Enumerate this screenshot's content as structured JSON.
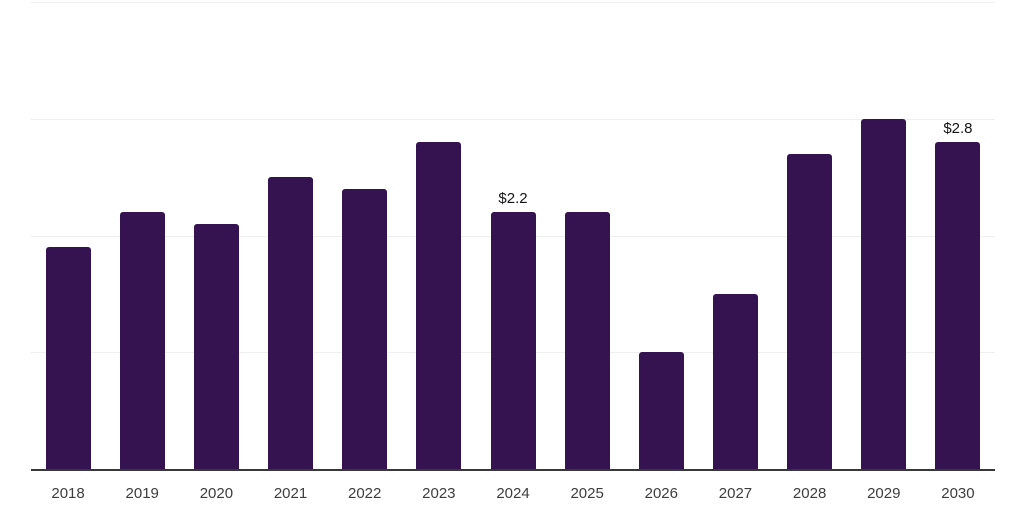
{
  "chart_data": {
    "type": "bar",
    "title": "",
    "xlabel": "",
    "ylabel": "",
    "categories": [
      "2018",
      "2019",
      "2020",
      "2021",
      "2022",
      "2023",
      "2024",
      "2025",
      "2026",
      "2027",
      "2028",
      "2029",
      "2030"
    ],
    "values": [
      1.9,
      2.2,
      2.1,
      2.5,
      2.4,
      2.8,
      2.2,
      2.2,
      1.0,
      1.5,
      2.7,
      3.0,
      2.8
    ],
    "data_labels": [
      {
        "category": "2024",
        "text": "$2.2"
      },
      {
        "category": "2030",
        "text": "$2.8"
      }
    ],
    "ylim": [
      0,
      4
    ],
    "gridline_values": [
      1,
      2,
      3,
      4
    ],
    "grid": true,
    "legend": false,
    "colors": {
      "bar": "#351250",
      "gridline": "#efeff1",
      "axis_line": "#383838",
      "axis_label": "#3d3d3d",
      "data_label": "#151515",
      "background": "#ffffff"
    }
  }
}
